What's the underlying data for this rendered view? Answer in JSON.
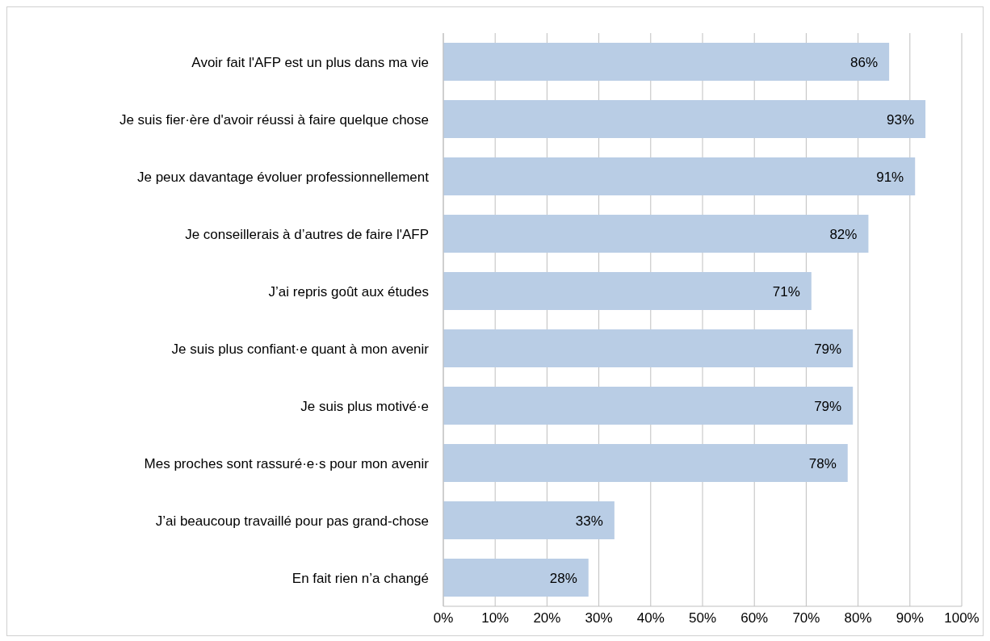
{
  "chart_data": {
    "type": "bar",
    "orientation": "horizontal",
    "categories": [
      "Avoir fait l'AFP est un plus dans ma vie",
      "Je suis fier·ère d'avoir réussi à faire quelque chose",
      "Je peux davantage évoluer professionnellement",
      "Je conseillerais à d’autres de faire l'AFP",
      "J’ai repris goût aux études",
      "Je suis plus confiant·e quant à mon avenir",
      "Je suis plus motivé·e",
      "Mes proches sont rassuré·e·s pour mon avenir",
      "J’ai beaucoup travaillé pour pas grand-chose",
      "En fait rien n’a changé"
    ],
    "values": [
      86,
      93,
      91,
      82,
      71,
      79,
      79,
      78,
      33,
      28
    ],
    "value_labels": [
      "86%",
      "93%",
      "91%",
      "82%",
      "71%",
      "79%",
      "79%",
      "78%",
      "33%",
      "28%"
    ],
    "color": "#b9cde5",
    "xlim": [
      0,
      100
    ],
    "xticks": [
      {
        "value": 0,
        "label": "0%"
      },
      {
        "value": 10,
        "label": "10%"
      },
      {
        "value": 20,
        "label": "20%"
      },
      {
        "value": 30,
        "label": "30%"
      },
      {
        "value": 40,
        "label": "40%"
      },
      {
        "value": 50,
        "label": "50%"
      },
      {
        "value": 60,
        "label": "60%"
      },
      {
        "value": 70,
        "label": "70%"
      },
      {
        "value": 80,
        "label": "80%"
      },
      {
        "value": 90,
        "label": "90%"
      },
      {
        "value": 100,
        "label": "100%"
      }
    ],
    "grid": "x"
  }
}
